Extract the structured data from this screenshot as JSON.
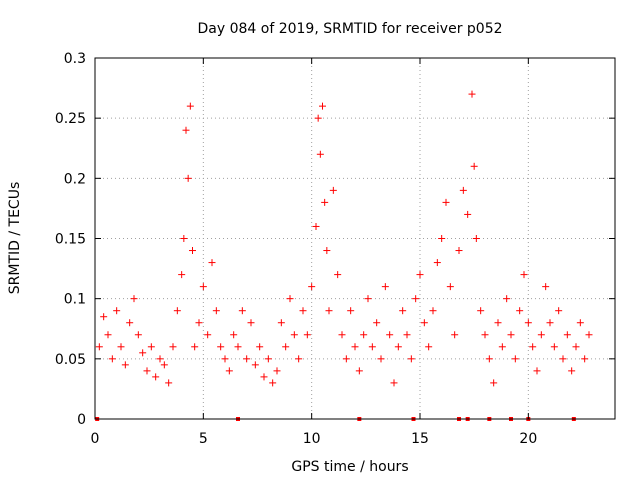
{
  "chart_data": {
    "type": "scatter",
    "title": "Day 084 of 2019, SRMTID for receiver p052",
    "xlabel": "GPS time / hours",
    "ylabel": "SRMTID / TECUs",
    "xlim": [
      0,
      24
    ],
    "ylim": [
      0,
      0.3
    ],
    "x_ticks": [
      0,
      5,
      10,
      15,
      20
    ],
    "x_tick_labels": [
      "0",
      "5",
      "10",
      "15",
      "20"
    ],
    "y_ticks": [
      0,
      0.05,
      0.1,
      0.15,
      0.2,
      0.25,
      0.3
    ],
    "y_tick_labels": [
      "0",
      "0.05",
      "0.1",
      "0.15",
      "0.2",
      "0.25",
      "0.3"
    ],
    "grid": true,
    "marker": "plus",
    "series": [
      {
        "name": "SRMTID",
        "color": "#ff0000",
        "x": [
          0.2,
          0.4,
          0.6,
          0.8,
          1.0,
          1.2,
          1.4,
          1.6,
          1.8,
          2.0,
          2.2,
          2.4,
          2.6,
          2.8,
          3.0,
          3.2,
          3.4,
          3.6,
          3.8,
          4.0,
          4.1,
          4.2,
          4.3,
          4.4,
          4.5,
          4.6,
          4.8,
          5.0,
          5.2,
          5.4,
          5.6,
          5.8,
          6.0,
          6.2,
          6.4,
          6.6,
          6.8,
          7.0,
          7.2,
          7.4,
          7.6,
          7.8,
          8.0,
          8.2,
          8.4,
          8.6,
          8.8,
          9.0,
          9.2,
          9.4,
          9.6,
          9.8,
          10.0,
          10.2,
          10.3,
          10.4,
          10.5,
          10.6,
          10.7,
          10.8,
          11.0,
          11.2,
          11.4,
          11.6,
          11.8,
          12.0,
          12.2,
          12.4,
          12.6,
          12.8,
          13.0,
          13.2,
          13.4,
          13.6,
          13.8,
          14.0,
          14.2,
          14.4,
          14.6,
          14.8,
          15.0,
          15.2,
          15.4,
          15.6,
          15.8,
          16.0,
          16.2,
          16.4,
          16.6,
          16.8,
          17.0,
          17.2,
          17.4,
          17.5,
          17.6,
          17.8,
          18.0,
          18.2,
          18.4,
          18.6,
          18.8,
          19.0,
          19.2,
          19.4,
          19.6,
          19.8,
          20.0,
          20.2,
          20.4,
          20.6,
          20.8,
          21.0,
          21.2,
          21.4,
          21.6,
          21.8,
          22.0,
          22.2,
          22.4,
          22.6,
          22.8
        ],
        "y": [
          0.06,
          0.085,
          0.07,
          0.05,
          0.09,
          0.06,
          0.045,
          0.08,
          0.1,
          0.07,
          0.055,
          0.04,
          0.06,
          0.035,
          0.05,
          0.045,
          0.03,
          0.06,
          0.09,
          0.12,
          0.15,
          0.24,
          0.2,
          0.26,
          0.14,
          0.06,
          0.08,
          0.11,
          0.07,
          0.13,
          0.09,
          0.06,
          0.05,
          0.04,
          0.07,
          0.06,
          0.09,
          0.05,
          0.08,
          0.045,
          0.06,
          0.035,
          0.05,
          0.03,
          0.04,
          0.08,
          0.06,
          0.1,
          0.07,
          0.05,
          0.09,
          0.07,
          0.11,
          0.16,
          0.25,
          0.22,
          0.26,
          0.18,
          0.14,
          0.09,
          0.19,
          0.12,
          0.07,
          0.05,
          0.09,
          0.06,
          0.04,
          0.07,
          0.1,
          0.06,
          0.08,
          0.05,
          0.11,
          0.07,
          0.03,
          0.06,
          0.09,
          0.07,
          0.05,
          0.1,
          0.12,
          0.08,
          0.06,
          0.09,
          0.13,
          0.15,
          0.18,
          0.11,
          0.07,
          0.14,
          0.19,
          0.17,
          0.27,
          0.21,
          0.15,
          0.09,
          0.07,
          0.05,
          0.03,
          0.08,
          0.06,
          0.1,
          0.07,
          0.05,
          0.09,
          0.12,
          0.08,
          0.06,
          0.04,
          0.07,
          0.11,
          0.08,
          0.06,
          0.09,
          0.05,
          0.07,
          0.04,
          0.06,
          0.08,
          0.05,
          0.07
        ],
        "zero_x": [
          0.1,
          6.6,
          12.2,
          14.7,
          16.8,
          17.2,
          18.2,
          19.2,
          20.0,
          22.1
        ]
      }
    ]
  }
}
